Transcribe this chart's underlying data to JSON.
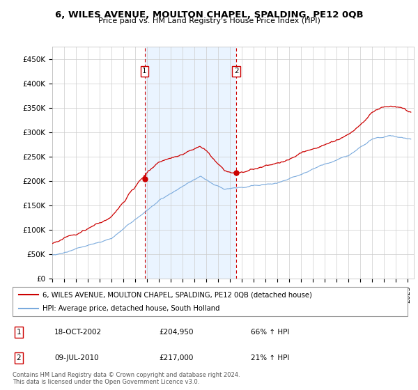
{
  "title": "6, WILES AVENUE, MOULTON CHAPEL, SPALDING, PE12 0QB",
  "subtitle": "Price paid vs. HM Land Registry's House Price Index (HPI)",
  "ylim": [
    0,
    475000
  ],
  "yticks": [
    0,
    50000,
    100000,
    150000,
    200000,
    250000,
    300000,
    350000,
    400000,
    450000
  ],
  "ytick_labels": [
    "£0",
    "£50K",
    "£100K",
    "£150K",
    "£200K",
    "£250K",
    "£300K",
    "£350K",
    "£400K",
    "£450K"
  ],
  "xlim_start": 1995.0,
  "xlim_end": 2025.5,
  "xtick_years": [
    1995,
    1996,
    1997,
    1998,
    1999,
    2000,
    2001,
    2002,
    2003,
    2004,
    2005,
    2006,
    2007,
    2008,
    2009,
    2010,
    2011,
    2012,
    2013,
    2014,
    2015,
    2016,
    2017,
    2018,
    2019,
    2020,
    2021,
    2022,
    2023,
    2024,
    2025
  ],
  "sale1_x": 2002.79,
  "sale1_y": 204950,
  "sale1_label": "1",
  "sale2_x": 2010.52,
  "sale2_y": 217000,
  "sale2_label": "2",
  "red_color": "#cc0000",
  "blue_color": "#7aaadd",
  "shade_color": "#ddeeff",
  "legend_line1": "6, WILES AVENUE, MOULTON CHAPEL, SPALDING, PE12 0QB (detached house)",
  "legend_line2": "HPI: Average price, detached house, South Holland",
  "table_entries": [
    {
      "num": "1",
      "date": "18-OCT-2002",
      "price": "£204,950",
      "hpi": "66% ↑ HPI"
    },
    {
      "num": "2",
      "date": "09-JUL-2010",
      "price": "£217,000",
      "hpi": "21% ↑ HPI"
    }
  ],
  "footer": "Contains HM Land Registry data © Crown copyright and database right 2024.\nThis data is licensed under the Open Government Licence v3.0.",
  "plot_background": "#ffffff"
}
